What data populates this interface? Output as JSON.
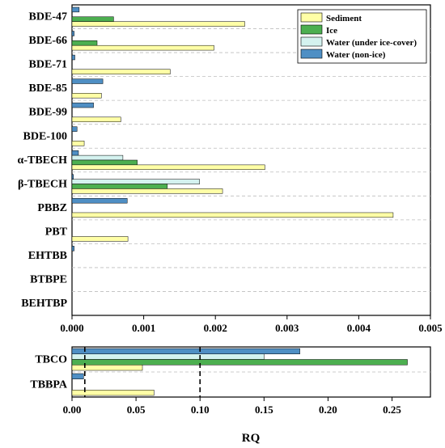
{
  "chart_data": [
    {
      "type": "bar",
      "orientation": "horizontal",
      "categories": [
        "BDE-47",
        "BDE-66",
        "BDE-71",
        "BDE-85",
        "BDE-99",
        "BDE-100",
        "α-TBECH",
        "β-TBECH",
        "PBBZ",
        "PBT",
        "EHTBB",
        "BTBPE",
        "BEHTBP"
      ],
      "series": [
        {
          "name": "Sediment",
          "color": "#ffffa6",
          "values": [
            0.00241,
            0.00198,
            0.00137,
            0.00041,
            0.00068,
            0.00017,
            0.00269,
            0.0021,
            0.00448,
            0.00078,
            0,
            0,
            0
          ]
        },
        {
          "name": "Ice",
          "color": "#4caf50",
          "values": [
            0.00058,
            0.00035,
            0,
            0,
            0,
            0,
            0.00091,
            0.00133,
            0,
            0,
            0,
            0,
            0
          ]
        },
        {
          "name": "Water (under ice-cover)",
          "color": "#d4f2ef",
          "values": [
            0,
            0,
            0,
            0,
            0,
            0,
            0.00071,
            0.00178,
            0,
            0,
            0,
            0,
            0
          ]
        },
        {
          "name": "Water (non-ice)",
          "color": "#4f8fc4",
          "values": [
            0.0001,
            3e-05,
            4e-05,
            0.00043,
            0.0003,
            7e-05,
            9e-05,
            2e-05,
            0.00077,
            0,
            3e-05,
            0,
            0
          ]
        }
      ],
      "xlim": [
        0,
        0.005
      ],
      "xticks": [
        "0.000",
        "0.001",
        "0.002",
        "0.003",
        "0.004",
        "0.005"
      ],
      "grid": "horizontal dashed separators",
      "legend": {
        "position": "top-right",
        "entries": [
          "Sediment",
          "Ice",
          "Water (under ice-cover)",
          "Water (non-ice)"
        ]
      }
    },
    {
      "type": "bar",
      "orientation": "horizontal",
      "categories": [
        "TBCO",
        "TBBPA"
      ],
      "series": [
        {
          "name": "Sediment",
          "color": "#ffffa6",
          "values": [
            0.055,
            0.064
          ]
        },
        {
          "name": "Ice",
          "color": "#4caf50",
          "values": [
            0.262,
            0
          ]
        },
        {
          "name": "Water (under ice-cover)",
          "color": "#d4f2ef",
          "values": [
            0.15,
            0
          ]
        },
        {
          "name": "Water (non-ice)",
          "color": "#4f8fc4",
          "values": [
            0.178,
            0.009
          ]
        }
      ],
      "xlim": [
        0,
        0.28
      ],
      "xticks": [
        "0.00",
        "0.05",
        "0.10",
        "0.15",
        "0.20",
        "0.25"
      ],
      "reference_lines": [
        0.01,
        0.1
      ],
      "xlabel": "RQ"
    }
  ]
}
